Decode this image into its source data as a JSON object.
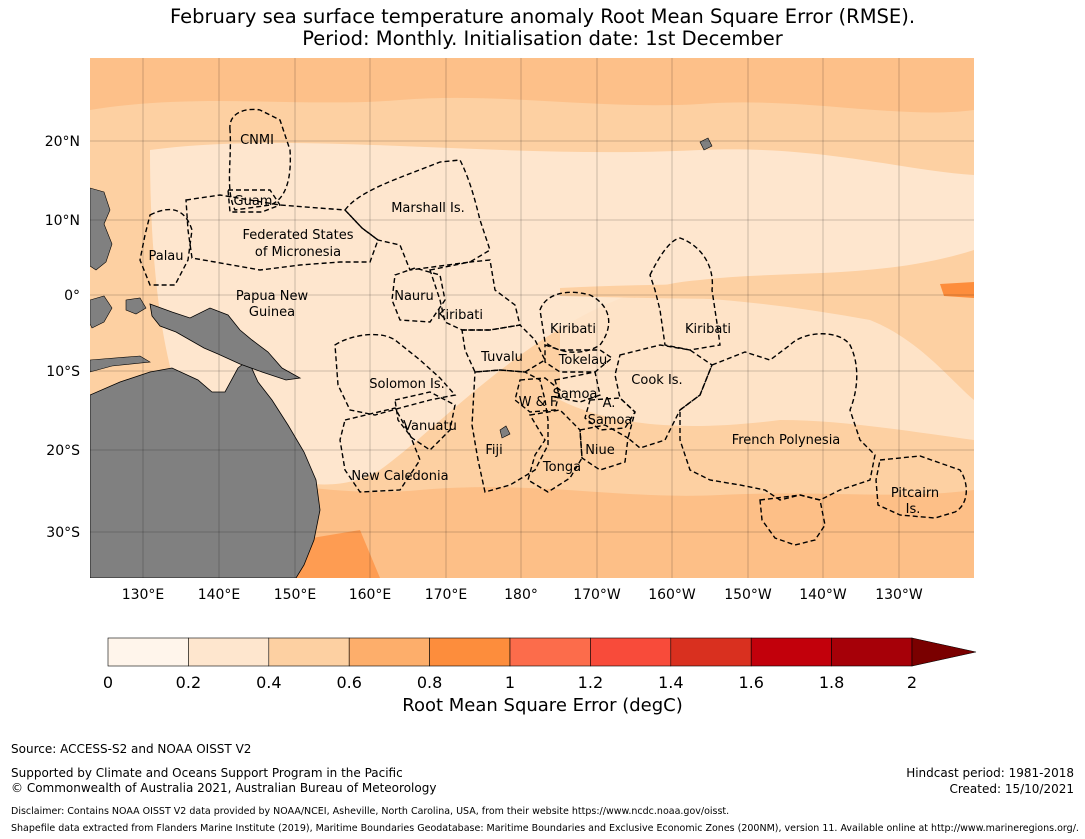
{
  "title": {
    "line1": "February sea surface temperature anomaly Root Mean Square Error (RMSE).",
    "line2": "Period: Monthly. Initialisation date: 1st December"
  },
  "map": {
    "lat_ticks": [
      "20°N",
      "10°N",
      "0°",
      "10°S",
      "20°S",
      "30°S"
    ],
    "lon_ticks": [
      "130°E",
      "140°E",
      "150°E",
      "160°E",
      "170°E",
      "180°",
      "170°W",
      "160°W",
      "150°W",
      "140°W",
      "130°W"
    ],
    "regions": [
      "CNMI",
      "Guam",
      "Marshall Is.",
      "Federated States",
      "of Micronesia",
      "Palau",
      "Papua New",
      "Guinea",
      "Nauru",
      "Kiribati",
      "Kiribati",
      "Kiribati",
      "Tuvalu",
      "Tokelau",
      "Solomon Is.",
      "Samoa",
      "W & F",
      "A.",
      "Samoa",
      "Cook Is.",
      "Vanuatu",
      "Fiji",
      "Niue",
      "Tonga",
      "New Caledonia",
      "French Polynesia",
      "Pitcairn",
      "Is."
    ],
    "colors": {
      "land": "#808080",
      "ocean_low": "#fee6ce",
      "ocean_mid": "#fdd0a2",
      "ocean_high": "#fdae6b",
      "ocean_peak": "#fd8d3c"
    }
  },
  "colorbar": {
    "ticks": [
      "0",
      "0.2",
      "0.4",
      "0.6",
      "0.8",
      "1",
      "1.2",
      "1.4",
      "1.6",
      "1.8",
      "2"
    ],
    "colors": [
      "#fff5eb",
      "#fee6ce",
      "#fdd0a2",
      "#fdae6b",
      "#fd8d3c",
      "#fc6c4b",
      "#f84b3a",
      "#d9301f",
      "#c2000b",
      "#a60008",
      "#7a0000"
    ],
    "label": "Root Mean Square Error (degC)"
  },
  "footer": {
    "source": "Source: ACCESS-S2 and NOAA OISST V2",
    "supported": "Supported by Climate and Oceans Support Program in the Pacific",
    "copyright": "© Commonwealth of Australia 2021, Australian Bureau of Meteorology",
    "hindcast": "Hindcast period: 1981-2018",
    "created": "Created: 15/10/2021",
    "disclaimer": "Disclaimer: Contains NOAA OISST V2 data provided by NOAA/NCEI, Asheville, North Carolina, USA, from their website https://www.ncdc.noaa.gov/oisst.",
    "shapefile": "Shapefile data extracted from Flanders Marine Institute (2019), Maritime Boundaries Geodatabase: Maritime Boundaries and Exclusive Economic Zones (200NM), version 11. Available online at http://www.marineregions.org/."
  }
}
